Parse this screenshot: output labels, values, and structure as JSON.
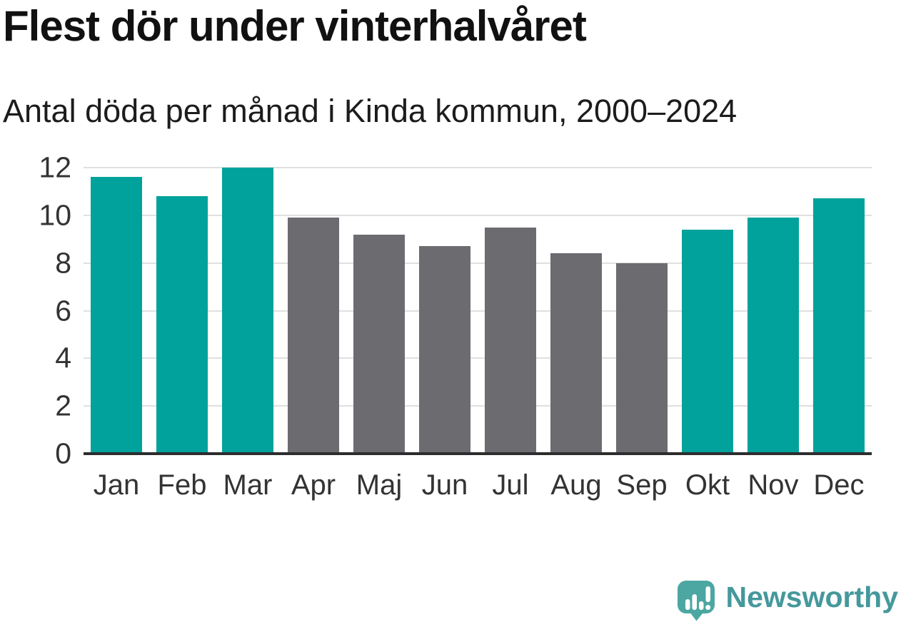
{
  "header": {
    "title": "Flest dör under vinterhalvåret",
    "subtitle": "Antal döda per månad i Kinda kommun, 2000–2024"
  },
  "chart_data": {
    "type": "bar",
    "title": "Flest dör under vinterhalvåret",
    "subtitle": "Antal döda per månad i Kinda kommun, 2000–2024",
    "categories": [
      "Jan",
      "Feb",
      "Mar",
      "Apr",
      "Maj",
      "Jun",
      "Jul",
      "Aug",
      "Sep",
      "Okt",
      "Nov",
      "Dec"
    ],
    "values": [
      11.6,
      10.8,
      12,
      9.9,
      9.2,
      8.7,
      9.5,
      8.4,
      8,
      9.4,
      9.9,
      10.7
    ],
    "color_groups": [
      "winter",
      "winter",
      "winter",
      "summer",
      "summer",
      "summer",
      "summer",
      "summer",
      "summer",
      "winter",
      "winter",
      "winter"
    ],
    "colors": {
      "winter": "#00a29b",
      "summer": "#6c6b70"
    },
    "xlabel": "",
    "ylabel": "",
    "ylim": [
      0,
      12
    ],
    "yticks": [
      0,
      2,
      4,
      6,
      8,
      10,
      12
    ],
    "grid": "horizontal",
    "gridline_color": "#e0e0e0",
    "axis_color": "#2d2d2d",
    "legend": "none"
  },
  "branding": {
    "logo_icon": "newsworthy-speech-bubble-bar-chart-icon",
    "logo_text": "Newsworthy",
    "brand_color": "#45989c",
    "icon_color": "#4ca7a3",
    "icon_glyph_color": "#ffffff"
  }
}
